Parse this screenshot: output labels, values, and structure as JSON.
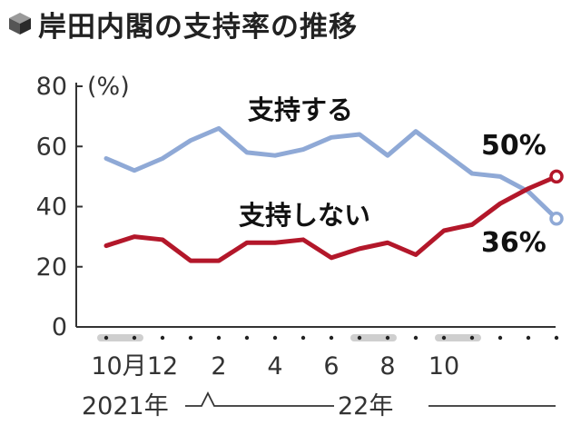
{
  "title": "岸田内閣の支持率の推移",
  "icon": "cube-icon",
  "chart_data": {
    "type": "line",
    "unit_label": "(%)",
    "ylim": [
      0,
      80
    ],
    "y_ticks": [
      "0",
      "20",
      "40",
      "60",
      "80"
    ],
    "x_tick_labels": [
      "10月",
      "12",
      "2",
      "4",
      "6",
      "8",
      "10"
    ],
    "year_labels": [
      "2021年",
      "22年"
    ],
    "series": [
      {
        "name": "支持する",
        "color": "#8fa9d6",
        "values": [
          56,
          52,
          56,
          62,
          66,
          58,
          57,
          59,
          63,
          64,
          57,
          65,
          58,
          51,
          50,
          45,
          36
        ],
        "end_label": "36%"
      },
      {
        "name": "支持しない",
        "color": "#b3172a",
        "values": [
          27,
          30,
          29,
          22,
          22,
          28,
          28,
          29,
          23,
          26,
          28,
          24,
          32,
          34,
          41,
          46,
          50
        ],
        "end_label": "50%"
      }
    ],
    "grid": false
  }
}
